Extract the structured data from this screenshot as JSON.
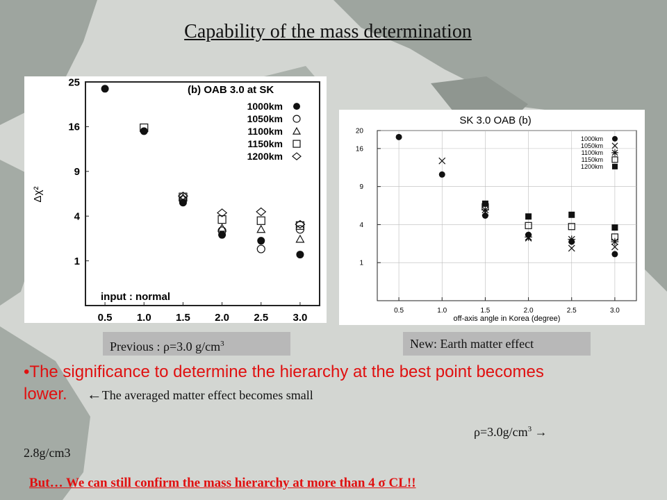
{
  "title": "Capability of the mass determination",
  "captions": {
    "left_prefix": "Previous  : ρ=3.0 g/cm",
    "left_sup": "3",
    "right": "New: Earth matter effect"
  },
  "bullet": {
    "marker": "•",
    "text": "The significance to determine the hierarchy at the best point becomes lower.",
    "arrow": "←",
    "arrow_text": "The averaged matter effect becomes small"
  },
  "density_change": {
    "from_prefix": "ρ=3.0g/cm",
    "from_sup": "3",
    "arrow": " →",
    "to": "2.8g/cm3"
  },
  "conclusion": "But…  We can still confirm the mass hierarchy at more than 4 σ CL!!",
  "colors": {
    "title_text": "#111111",
    "highlight": "#e01010",
    "caption_bg": "#b8b8b8",
    "map_land": "#9ea59f",
    "map_sea": "#d3d6d2"
  },
  "chart_data": [
    {
      "type": "scatter",
      "title": "(b) OAB 3.0 at SK",
      "ylabel": "Δχ²",
      "xlabel": "",
      "y_scale": "sqrt",
      "ylim": [
        0,
        25
      ],
      "xlim": [
        0.25,
        3.25
      ],
      "x_ticks": [
        "0.5",
        "1.0",
        "1.5",
        "2.0",
        "2.5",
        "3.0"
      ],
      "y_ticks": [
        "1",
        "4",
        "9",
        "16",
        "25"
      ],
      "annotation": "input : normal",
      "legend_position": "top-right",
      "grid": false,
      "x": [
        0.5,
        1.0,
        1.5,
        2.0,
        2.5,
        3.0
      ],
      "series": [
        {
          "name": "1000km",
          "marker": "filled-circle",
          "values": [
            23.5,
            15.2,
            5.3,
            2.5,
            2.1,
            1.3
          ]
        },
        {
          "name": "1050km",
          "marker": "open-circle",
          "values": [
            null,
            null,
            5.6,
            2.8,
            1.6,
            2.9
          ]
        },
        {
          "name": "1100km",
          "marker": "open-triangle",
          "values": [
            null,
            null,
            5.8,
            3.0,
            2.9,
            2.2
          ]
        },
        {
          "name": "1150km",
          "marker": "open-square",
          "values": [
            null,
            15.8,
            5.9,
            3.7,
            3.6,
            3.2
          ]
        },
        {
          "name": "1200km",
          "marker": "open-diamond",
          "values": [
            null,
            null,
            6.0,
            4.3,
            4.4,
            3.3
          ]
        }
      ]
    },
    {
      "type": "scatter",
      "title": "SK 3.0 OAB (b)",
      "xlabel": "off-axis angle in Korea (degree)",
      "ylabel": "",
      "y_scale": "sqrt",
      "ylim": [
        0,
        20
      ],
      "xlim": [
        0.25,
        3.25
      ],
      "x_ticks": [
        "0.5",
        "1.0",
        "1.5",
        "2.0",
        "2.5",
        "3.0"
      ],
      "y_ticks": [
        "1",
        "4",
        "9",
        "16",
        "20"
      ],
      "legend_position": "top-right",
      "grid": true,
      "x": [
        0.5,
        1.0,
        1.5,
        2.0,
        2.5,
        3.0
      ],
      "series": [
        {
          "name": "1000km",
          "marker": "filled-circle",
          "values": [
            18.5,
            11.0,
            5.0,
            3.0,
            2.4,
            1.5
          ]
        },
        {
          "name": "1050km",
          "marker": "cross",
          "values": [
            null,
            13.5,
            5.4,
            2.7,
            1.9,
            2.0
          ]
        },
        {
          "name": "1100km",
          "marker": "asterisk",
          "values": [
            null,
            null,
            5.7,
            2.8,
            2.6,
            2.4
          ]
        },
        {
          "name": "1150km",
          "marker": "open-square",
          "values": [
            null,
            null,
            6.1,
            3.9,
            3.8,
            2.8
          ]
        },
        {
          "name": "1200km",
          "marker": "filled-square",
          "values": [
            null,
            null,
            6.5,
            4.9,
            5.1,
            3.7
          ]
        }
      ]
    }
  ]
}
